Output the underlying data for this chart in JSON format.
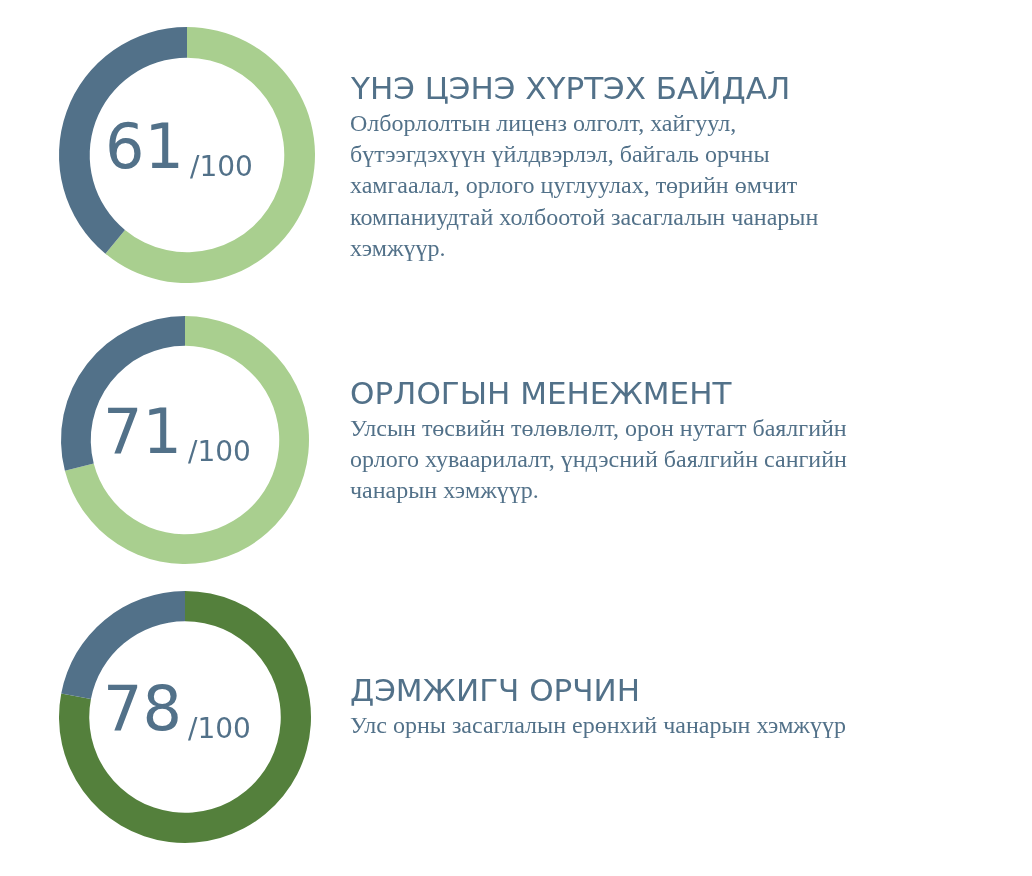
{
  "chart_data": [
    {
      "type": "donut",
      "title": "ҮНЭ ЦЭНЭ ХҮРТЭХ БАЙДАЛ",
      "subtitle": "Олборлолтын лиценз олголт, хайгуул,\nбүтээгдэхүүн үйлдвэрлэл, байгаль орчны\nхамгаалал, орлого цуглуулах, төрийн өмчит\nкомпаниудтай холбоотой засаглалын чанарын\nхэмжүүр.",
      "categories": [
        null,
        null
      ],
      "values": [
        61,
        39
      ],
      "colors": [
        "#a9cf8f",
        "#527189"
      ],
      "annotations": [
        "61",
        "/100"
      ],
      "legend": false
    },
    {
      "type": "donut",
      "title": "ОРЛОГЫН МЕНЕЖМЕНТ",
      "subtitle": "Улсын төсвийн төлөвлөлт, орон нутагт баялгийн\nорлого хуваарилалт, үндэсний баялгийн сангийн\nчанарын хэмжүүр.",
      "categories": [
        null,
        null
      ],
      "values": [
        71,
        29
      ],
      "colors": [
        "#a9cf8f",
        "#527189"
      ],
      "annotations": [
        "71",
        "/100"
      ],
      "legend": false
    },
    {
      "type": "donut",
      "title": "ДЭМЖИГЧ ОРЧИН",
      "subtitle": "Улс орны засаглалын ерөнхий чанарын хэмжүүр",
      "categories": [
        null,
        null
      ],
      "values": [
        78,
        22
      ],
      "colors": [
        "#54803c",
        "#527189"
      ],
      "annotations": [
        "78",
        "/100"
      ],
      "legend": false
    }
  ]
}
